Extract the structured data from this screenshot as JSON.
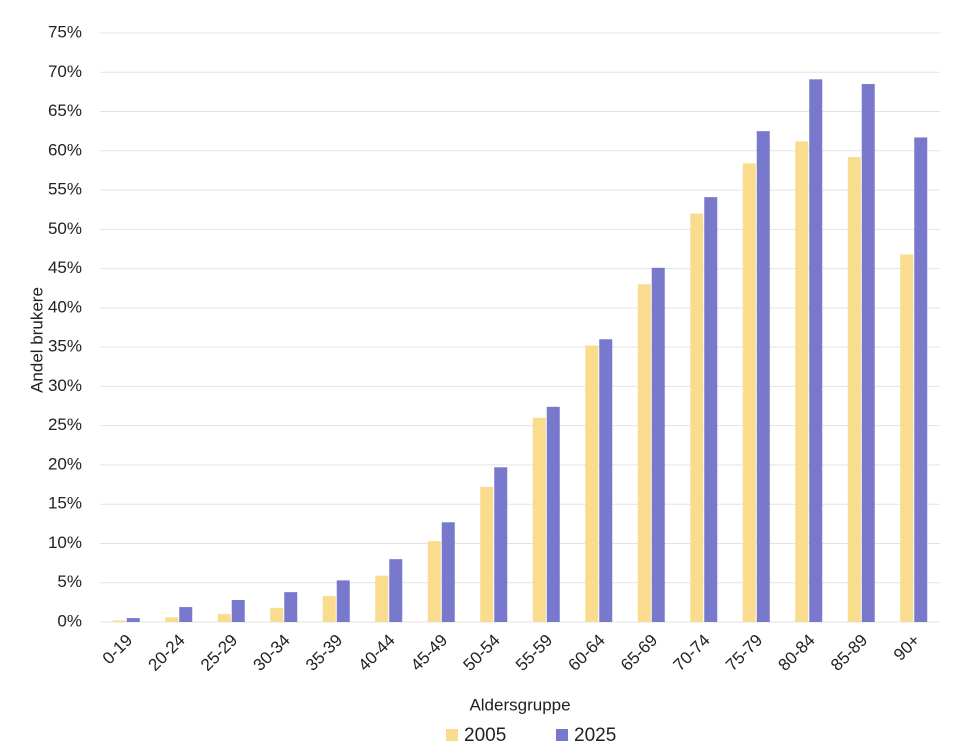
{
  "chart_data": {
    "type": "bar",
    "x_label": "Aldersgruppe",
    "y_label": "Andel brukere",
    "categories": [
      "0-19",
      "20-24",
      "25-29",
      "30-34",
      "35-39",
      "40-44",
      "45-49",
      "50-54",
      "55-59",
      "60-64",
      "65-69",
      "70-74",
      "75-79",
      "80-84",
      "85-89",
      "90+"
    ],
    "series": [
      {
        "name": "2005",
        "color": "#f9dc8e",
        "values": [
          0.2,
          0.6,
          1.0,
          1.8,
          3.3,
          5.9,
          10.3,
          17.2,
          26.0,
          35.2,
          43.0,
          52.0,
          58.4,
          61.2,
          59.2,
          46.8
        ]
      },
      {
        "name": "2025",
        "color": "#7878cc",
        "values": [
          0.5,
          1.9,
          2.8,
          3.8,
          5.3,
          8.0,
          12.7,
          19.7,
          27.4,
          36.0,
          45.1,
          54.1,
          62.5,
          69.1,
          68.5,
          61.7
        ]
      }
    ],
    "ylim": [
      0,
      75
    ],
    "yticks": [
      {
        "value": 0,
        "label": "0%"
      },
      {
        "value": 5,
        "label": "5%"
      },
      {
        "value": 10,
        "label": "10%"
      },
      {
        "value": 15,
        "label": "15%"
      },
      {
        "value": 20,
        "label": "20%"
      },
      {
        "value": 25,
        "label": "25%"
      },
      {
        "value": 30,
        "label": "30%"
      },
      {
        "value": 35,
        "label": "35%"
      },
      {
        "value": 40,
        "label": "40%"
      },
      {
        "value": 45,
        "label": "45%"
      },
      {
        "value": 50,
        "label": "50%"
      },
      {
        "value": 55,
        "label": "55%"
      },
      {
        "value": 60,
        "label": "60%"
      },
      {
        "value": 65,
        "label": "65%"
      },
      {
        "value": 70,
        "label": "70%"
      },
      {
        "value": 75,
        "label": "75%"
      }
    ],
    "grid": true,
    "legend": "bottom"
  }
}
